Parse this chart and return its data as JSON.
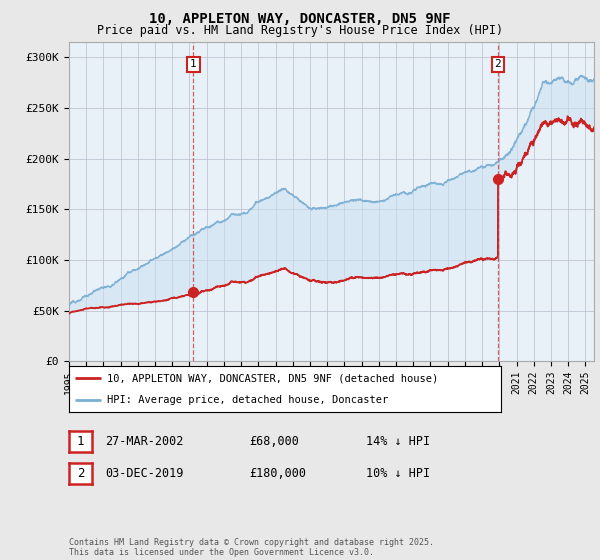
{
  "title_line1": "10, APPLETON WAY, DONCASTER, DN5 9NF",
  "title_line2": "Price paid vs. HM Land Registry's House Price Index (HPI)",
  "ylabel_ticks": [
    "£0",
    "£50K",
    "£100K",
    "£150K",
    "£200K",
    "£250K",
    "£300K"
  ],
  "ytick_values": [
    0,
    50000,
    100000,
    150000,
    200000,
    250000,
    300000
  ],
  "ylim": [
    0,
    315000
  ],
  "xlim_start": 1995.0,
  "xlim_end": 2025.5,
  "hpi_color": "#7bafd4",
  "hpi_fill_color": "#c8dff0",
  "price_color": "#cc2222",
  "marker1_date": 2002.23,
  "marker1_price": 68000,
  "marker2_date": 2019.92,
  "marker2_price": 180000,
  "legend_line1": "10, APPLETON WAY, DONCASTER, DN5 9NF (detached house)",
  "legend_line2": "HPI: Average price, detached house, Doncaster",
  "annotation1_num": "1",
  "annotation1_date": "27-MAR-2002",
  "annotation1_price": "£68,000",
  "annotation1_hpi": "14% ↓ HPI",
  "annotation2_num": "2",
  "annotation2_date": "03-DEC-2019",
  "annotation2_price": "£180,000",
  "annotation2_hpi": "10% ↓ HPI",
  "footer": "Contains HM Land Registry data © Crown copyright and database right 2025.\nThis data is licensed under the Open Government Licence v3.0.",
  "background_color": "#e8e8e8",
  "plot_background": "#e8f0f8",
  "grid_color": "#bbbbcc"
}
